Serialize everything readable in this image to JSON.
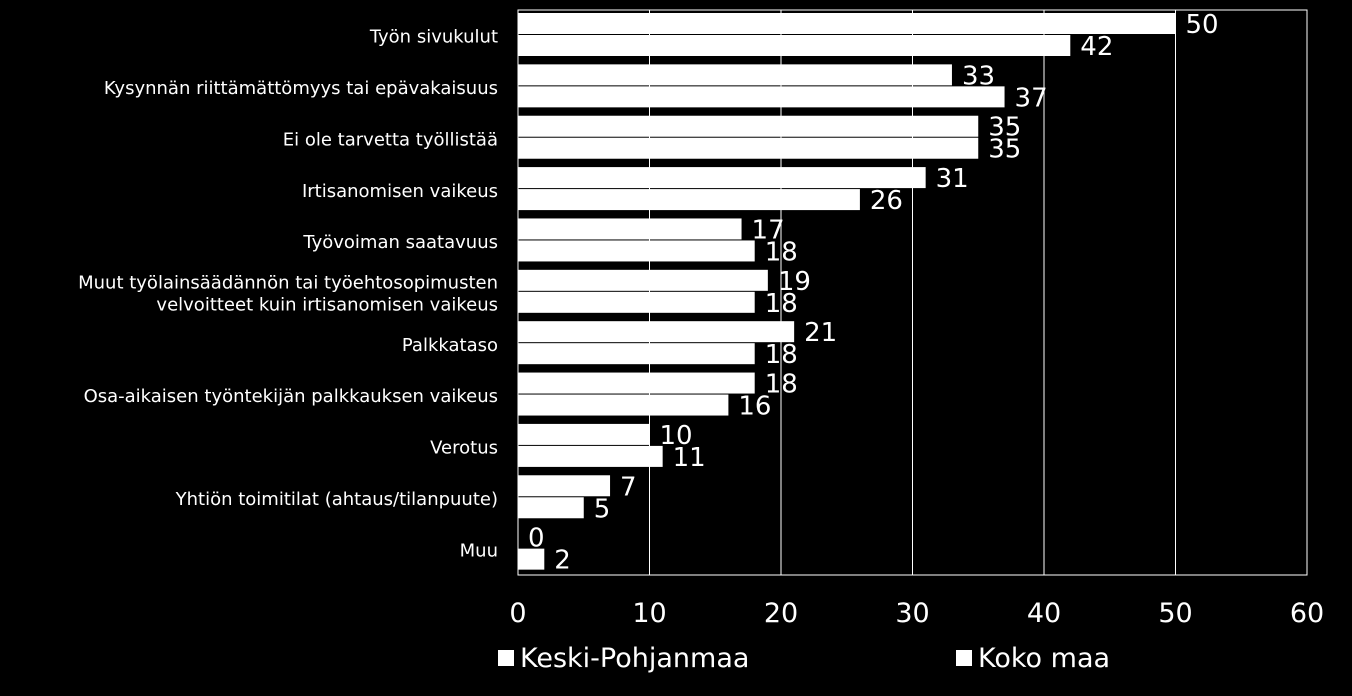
{
  "chart_data": {
    "type": "bar",
    "orientation": "horizontal",
    "categories": [
      "Työn sivukulut",
      "Kysynnän riittämättömyys tai epävakaisuus",
      "Ei ole tarvetta työllistää",
      "Irtisanomisen vaikeus",
      "Työvoiman saatavuus",
      "Muut työlainsäädännön tai työehtosopimusten velvoitteet kuin irtisanomisen vaikeus",
      "Palkkataso",
      "Osa-aikaisen työntekijän palkkauksen vaikeus",
      "Verotus",
      "Yhtiön toimitilat (ahtaus/tilanpuute)",
      "Muu"
    ],
    "category_lines": [
      [
        "Työn sivukulut"
      ],
      [
        "Kysynnän riittämättömyys tai epävakaisuus"
      ],
      [
        "Ei ole tarvetta työllistää"
      ],
      [
        "Irtisanomisen vaikeus"
      ],
      [
        "Työvoiman saatavuus"
      ],
      [
        "Muut työlainsäädännön tai työehtosopimusten",
        "velvoitteet kuin irtisanomisen vaikeus"
      ],
      [
        "Palkkataso"
      ],
      [
        "Osa-aikaisen työntekijän palkkauksen vaikeus"
      ],
      [
        "Verotus"
      ],
      [
        "Yhtiön toimitilat (ahtaus/tilanpuute)"
      ],
      [
        "Muu"
      ]
    ],
    "series": [
      {
        "name": "Keski-Pohjanmaa",
        "values": [
          50,
          33,
          35,
          31,
          17,
          19,
          21,
          18,
          10,
          7,
          0
        ]
      },
      {
        "name": "Koko maa",
        "values": [
          42,
          37,
          35,
          26,
          18,
          18,
          18,
          16,
          11,
          5,
          2
        ]
      }
    ],
    "xlim": [
      0,
      60
    ],
    "xticks": [
      0,
      10,
      20,
      30,
      40,
      50,
      60
    ],
    "xtick_labels": [
      "0",
      "10",
      "20",
      "30",
      "40",
      "50",
      "60"
    ],
    "grid": true,
    "legend_position": "bottom",
    "colors": {
      "background": "#000000",
      "bars": "#ffffff",
      "grid": "#ffffff",
      "text": "#ffffff"
    }
  }
}
